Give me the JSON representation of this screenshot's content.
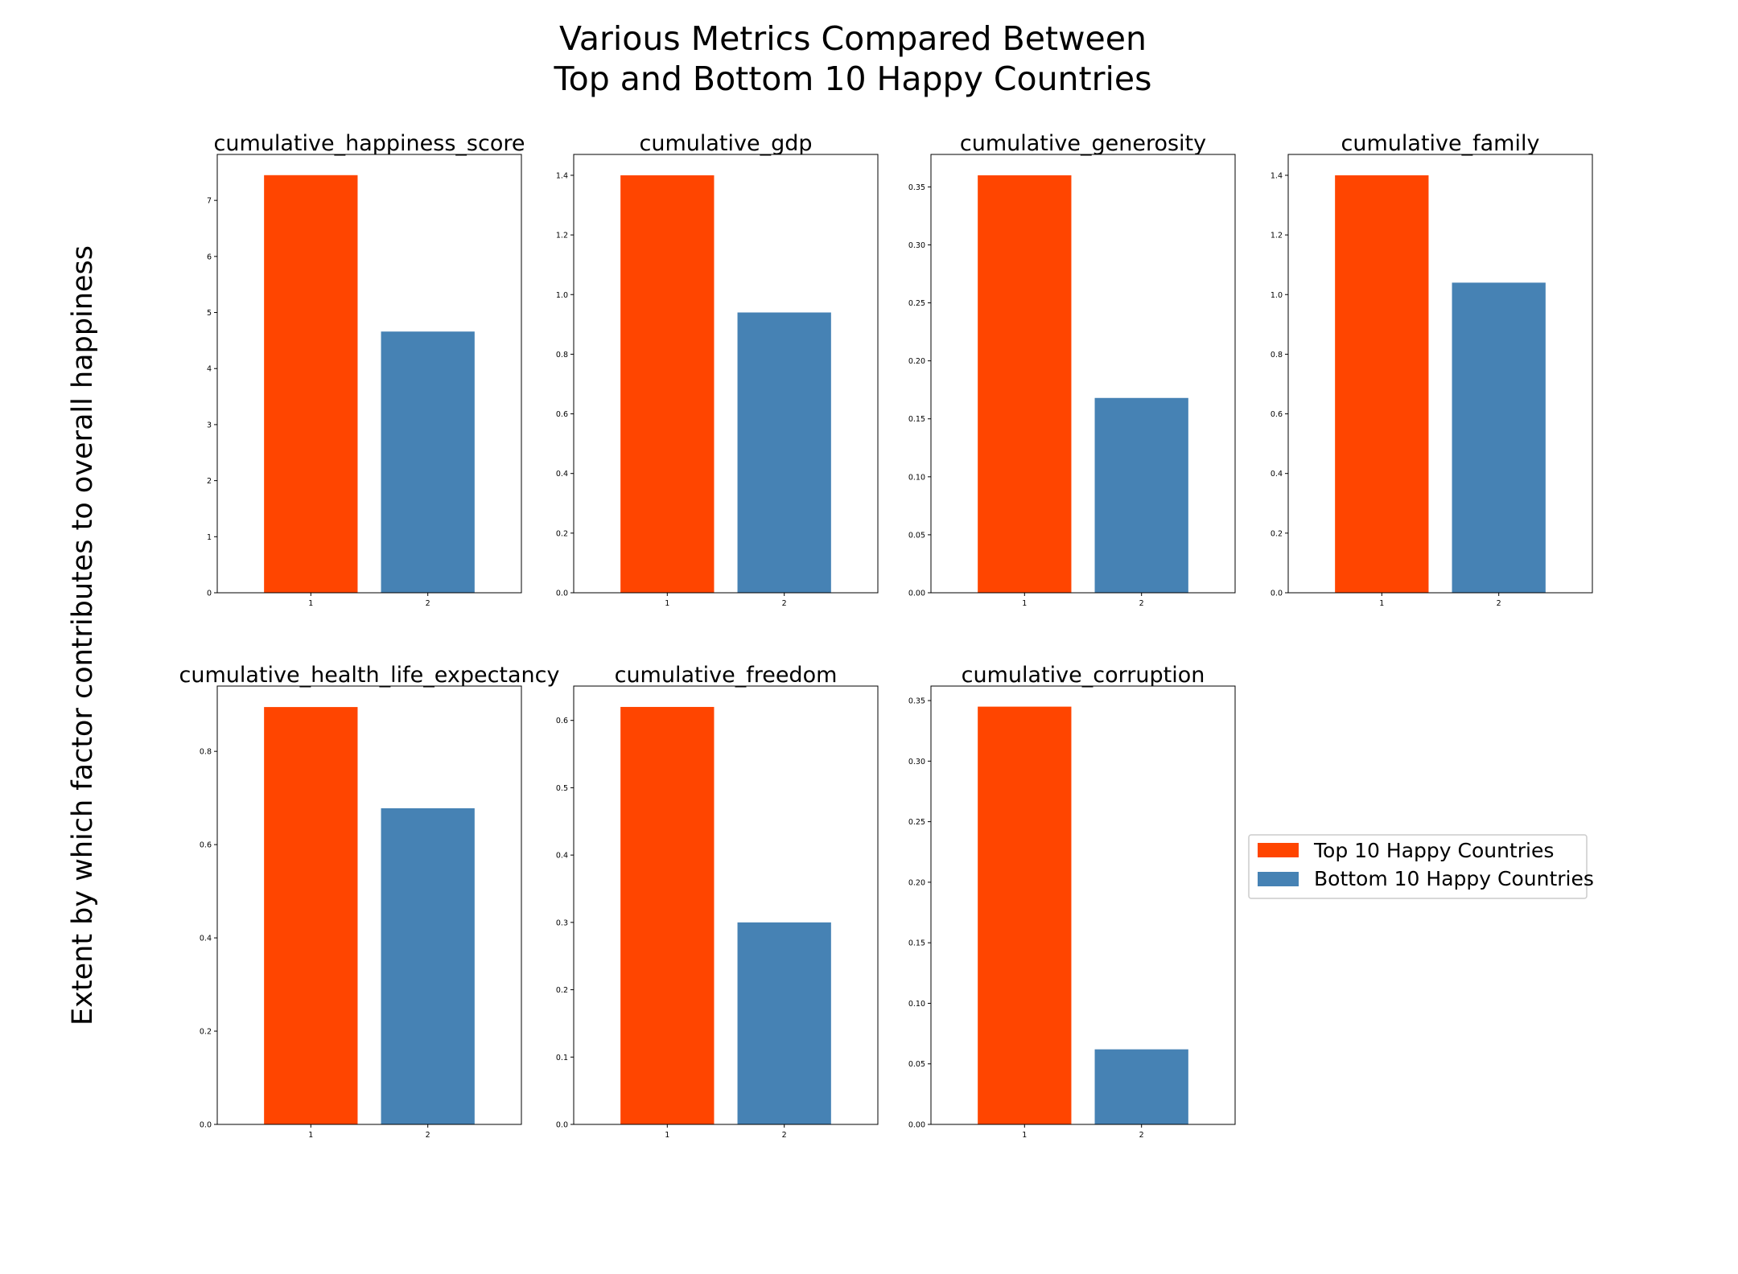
{
  "title_line1": "Various Metrics Compared Between",
  "title_line2": "Top and Bottom 10 Happy Countries",
  "ylabel": "Extent by which factor contributes to overall happiness",
  "legend": {
    "placement": "center-right",
    "entries": [
      {
        "label": "Top 10 Happy Countries",
        "color": "#ff4500"
      },
      {
        "label": "Bottom 10 Happy Countries",
        "color": "#4682b4"
      }
    ]
  },
  "chart_data": [
    {
      "type": "bar",
      "title": "cumulative_happiness_score",
      "categories": [
        "1",
        "2"
      ],
      "values": [
        7.45,
        4.66
      ],
      "ylim": [
        0,
        7.82
      ],
      "yticks": [
        "0",
        "1",
        "2",
        "3",
        "4",
        "5",
        "6",
        "7"
      ],
      "ytick_values": [
        0,
        1,
        2,
        3,
        4,
        5,
        6,
        7
      ]
    },
    {
      "type": "bar",
      "title": "cumulative_gdp",
      "categories": [
        "1",
        "2"
      ],
      "values": [
        1.4,
        0.94
      ],
      "ylim": [
        0,
        1.47
      ],
      "yticks": [
        "0.0",
        "0.2",
        "0.4",
        "0.6",
        "0.8",
        "1.0",
        "1.2",
        "1.4"
      ],
      "ytick_values": [
        0,
        0.2,
        0.4,
        0.6,
        0.8,
        1.0,
        1.2,
        1.4
      ]
    },
    {
      "type": "bar",
      "title": "cumulative_generosity",
      "categories": [
        "1",
        "2"
      ],
      "values": [
        0.36,
        0.168
      ],
      "ylim": [
        0,
        0.378
      ],
      "yticks": [
        "0.00",
        "0.05",
        "0.10",
        "0.15",
        "0.20",
        "0.25",
        "0.30",
        "0.35"
      ],
      "ytick_values": [
        0,
        0.05,
        0.1,
        0.15,
        0.2,
        0.25,
        0.3,
        0.35
      ]
    },
    {
      "type": "bar",
      "title": "cumulative_family",
      "categories": [
        "1",
        "2"
      ],
      "values": [
        1.4,
        1.04
      ],
      "ylim": [
        0,
        1.47
      ],
      "yticks": [
        "0.0",
        "0.2",
        "0.4",
        "0.6",
        "0.8",
        "1.0",
        "1.2",
        "1.4"
      ],
      "ytick_values": [
        0,
        0.2,
        0.4,
        0.6,
        0.8,
        1.0,
        1.2,
        1.4
      ]
    },
    {
      "type": "bar",
      "title": "cumulative_health_life_expectancy",
      "categories": [
        "1",
        "2"
      ],
      "values": [
        0.895,
        0.678
      ],
      "ylim": [
        0,
        0.94
      ],
      "yticks": [
        "0.0",
        "0.2",
        "0.4",
        "0.6",
        "0.8"
      ],
      "ytick_values": [
        0,
        0.2,
        0.4,
        0.6,
        0.8
      ]
    },
    {
      "type": "bar",
      "title": "cumulative_freedom",
      "categories": [
        "1",
        "2"
      ],
      "values": [
        0.62,
        0.3
      ],
      "ylim": [
        0,
        0.651
      ],
      "yticks": [
        "0.0",
        "0.1",
        "0.2",
        "0.3",
        "0.4",
        "0.5",
        "0.6"
      ],
      "ytick_values": [
        0,
        0.1,
        0.2,
        0.3,
        0.4,
        0.5,
        0.6
      ]
    },
    {
      "type": "bar",
      "title": "cumulative_corruption",
      "categories": [
        "1",
        "2"
      ],
      "values": [
        0.345,
        0.062
      ],
      "ylim": [
        0,
        0.362
      ],
      "yticks": [
        "0.00",
        "0.05",
        "0.10",
        "0.15",
        "0.20",
        "0.25",
        "0.30",
        "0.35"
      ],
      "ytick_values": [
        0,
        0.05,
        0.1,
        0.15,
        0.2,
        0.25,
        0.3,
        0.35
      ]
    }
  ]
}
